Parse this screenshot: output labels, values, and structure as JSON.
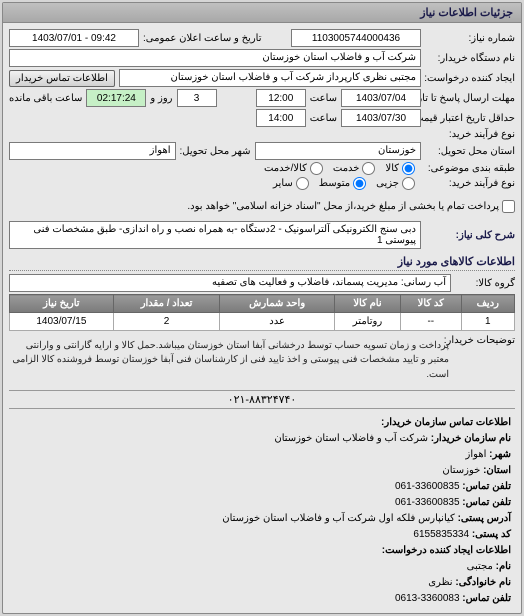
{
  "header": {
    "title": "جزئیات اطلاعات نیاز"
  },
  "info": {
    "need_no_lbl": "شماره نیاز:",
    "need_no": "1103005744000436",
    "announce_lbl": "تاریخ و ساعت اعلان عمومی:",
    "announce_date": "1403/07/01 - 09:42",
    "buyer_org_lbl": "نام دستگاه خریدار:",
    "buyer_org": "شرکت آب و فاضلاب استان خوزستان",
    "creator_lbl": "ایجاد کننده درخواست:",
    "creator": "مجتبی نظری کارپرداز شرکت آب و فاضلاب استان خوزستان",
    "contact_btn": "اطلاعات تماس خریدار",
    "deadline_answer_lbl": "مهلت ارسال پاسخ تا تاریخ:",
    "deadline_answer_date": "1403/07/04",
    "deadline_answer_time_lbl": "ساعت",
    "deadline_answer_time": "12:00",
    "days_remain": "3",
    "days_remain_lbl": "روز و",
    "time_remain": "02:17:24",
    "time_remain_lbl": "ساعت باقی مانده",
    "price_valid_lbl": "حداقل تاریخ اعتبار قیمت: تا تاریخ:",
    "price_valid_date": "1403/07/30",
    "price_valid_time_lbl": "ساعت",
    "price_valid_time": "14:00",
    "buy_process_lbl": "نوع فرآیند خرید:",
    "delivery_state_lbl": "استان محل تحویل:",
    "delivery_state": "خوزستان",
    "delivery_city_lbl": "شهر محل تحویل:",
    "delivery_city": "اهواز",
    "category_lbl": "طبقه بندی موضوعی:",
    "cat_goods": "کالا",
    "cat_service": "خدمت",
    "cat_both": "کالا/خدمت",
    "buy_type_lbl": "نوع فرآیند خرید:",
    "bt_small": "جزیی",
    "bt_medium": "متوسط",
    "bt_other": "سایر",
    "pay_note": "پرداخت تمام یا بخشی از مبلغ خرید،از محل \"اسناد خزانه اسلامی\" خواهد بود.",
    "need_key_lbl": "شرح کلی نیاز:",
    "need_key": "دبی سنج الکترونیکی آلتراسونیک - 2دستگاه -به همراه نصب و راه اندازی- طبق مشخصات فنی پیوستی 1",
    "goods_section": "اطلاعات کالاهای مورد نیاز",
    "group_lbl": "گروه کالا:",
    "group": "آب رسانی: مدیریت پسماند، فاضلاب و فعالیت های تصفیه",
    "buyer_note_lbl": "توضیحات خریدار:",
    "buyer_note": "پرداخت و زمان تسویه حساب توسط درخشانی آبفا استان خوزستان میباشد.حمل کالا و ارایه گارانتی و وارانتی معتبر و تایید مشخصات فنی پیوستی و اخذ تایید فنی از کارشناسان فنی آبفا خوزستان توسط فروشنده کالا الزامی است.",
    "footer_phone": "۰۲۱-۸۸۳۲۴۷۴۰"
  },
  "table": {
    "cols": [
      "ردیف",
      "کد کالا",
      "نام کالا",
      "واحد شمارش",
      "تعداد / مقدار",
      "تاریخ نیاز"
    ],
    "rows": [
      [
        "1",
        "--",
        "روتامتر",
        "عدد",
        "2",
        "1403/07/15"
      ]
    ]
  },
  "contact": {
    "title1": "اطلاعات تماس سازمان خریدار:",
    "org_lbl": "نام سازمان خریدار:",
    "org": "شرکت آب و فاضلاب استان خوزستان",
    "city_lbl": "شهر:",
    "city": "اهواز",
    "state_lbl": "استان:",
    "state": "خوزستان",
    "phone_lbl": "تلفن تماس:",
    "phone1": "061-33600835",
    "fax_lbl": "تلفن تماس:",
    "fax": "061-33600835",
    "addr_lbl": "آدرس پستی:",
    "addr": "کیانپارس فلکه اول شرکت آب و فاضلاب استان خوزستان",
    "post_lbl": "کد پستی:",
    "post": "6155835334",
    "title2": "اطلاعات ایجاد کننده درخواست:",
    "name_lbl": "نام:",
    "name": "مجتبی",
    "family_lbl": "نام خانوادگی:",
    "family": "نظری",
    "phone2_lbl": "تلفن تماس:",
    "phone2": "0613-3360083"
  }
}
